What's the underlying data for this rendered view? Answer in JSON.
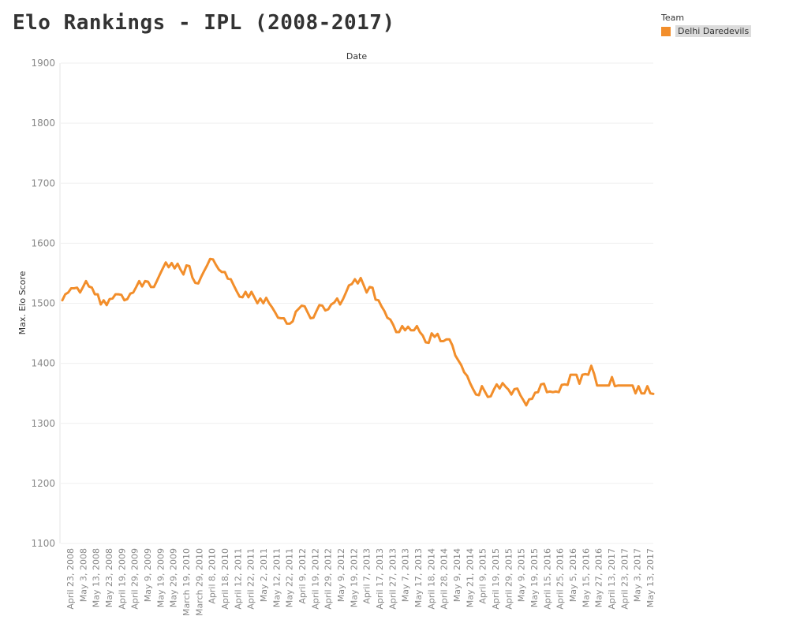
{
  "title": "Elo Rankings - IPL (2008-2017)",
  "legend": {
    "title": "Team",
    "items": [
      {
        "label": "Delhi Daredevils",
        "color": "#f28e2b"
      }
    ]
  },
  "chart_data": {
    "type": "line",
    "title": "Elo Rankings - IPL (2008-2017)",
    "xlabel": "Date",
    "ylabel": "Max. Elo Score",
    "ylim": [
      1100,
      1900
    ],
    "yticks": [
      1100,
      1200,
      1300,
      1400,
      1500,
      1600,
      1700,
      1800,
      1900
    ],
    "grid": true,
    "legend_position": "top-right",
    "x_tick_labels": [
      "April 23, 2008",
      "May 3, 2008",
      "May 13, 2008",
      "May 23, 2008",
      "April 19, 2009",
      "April 29, 2009",
      "May 9, 2009",
      "May 19, 2009",
      "May 29, 2009",
      "March 19, 2010",
      "March 29, 2010",
      "April 8, 2010",
      "April 18, 2010",
      "April 12, 2011",
      "April 22, 2011",
      "May 2, 2011",
      "May 12, 2011",
      "May 22, 2011",
      "April 9, 2012",
      "April 19, 2012",
      "April 29, 2012",
      "May 9, 2012",
      "May 19, 2012",
      "April 7, 2013",
      "April 17, 2013",
      "April 27, 2013",
      "May 7, 2013",
      "May 17, 2013",
      "April 18, 2014",
      "April 28, 2014",
      "May 9, 2014",
      "May 21, 2014",
      "April 9, 2015",
      "April 19, 2015",
      "April 29, 2015",
      "May 9, 2015",
      "May 19, 2015",
      "April 15, 2016",
      "April 25, 2016",
      "May 5, 2016",
      "May 15, 2016",
      "May 27, 2016",
      "April 13, 2017",
      "April 23, 2017",
      "May 3, 2017",
      "May 13, 2017"
    ],
    "series": [
      {
        "name": "Delhi Daredevils",
        "color": "#f28e2b",
        "values": [
          1505,
          1515,
          1518,
          1525,
          1525,
          1526,
          1518,
          1527,
          1537,
          1528,
          1526,
          1515,
          1515,
          1498,
          1505,
          1497,
          1507,
          1508,
          1515,
          1515,
          1514,
          1505,
          1507,
          1516,
          1518,
          1527,
          1537,
          1528,
          1537,
          1536,
          1527,
          1527,
          1537,
          1548,
          1558,
          1568,
          1560,
          1567,
          1558,
          1566,
          1556,
          1548,
          1563,
          1562,
          1543,
          1534,
          1533,
          1544,
          1554,
          1563,
          1574,
          1573,
          1564,
          1556,
          1552,
          1552,
          1541,
          1540,
          1530,
          1520,
          1511,
          1510,
          1519,
          1510,
          1519,
          1510,
          1500,
          1508,
          1500,
          1509,
          1500,
          1493,
          1485,
          1476,
          1475,
          1475,
          1466,
          1466,
          1470,
          1486,
          1491,
          1496,
          1495,
          1485,
          1475,
          1476,
          1487,
          1497,
          1496,
          1488,
          1490,
          1498,
          1501,
          1508,
          1498,
          1507,
          1518,
          1530,
          1532,
          1540,
          1533,
          1542,
          1530,
          1518,
          1527,
          1526,
          1506,
          1505,
          1495,
          1487,
          1476,
          1473,
          1464,
          1452,
          1452,
          1462,
          1455,
          1461,
          1455,
          1455,
          1462,
          1452,
          1446,
          1435,
          1434,
          1450,
          1444,
          1449,
          1437,
          1437,
          1440,
          1440,
          1430,
          1413,
          1405,
          1397,
          1385,
          1379,
          1367,
          1357,
          1348,
          1347,
          1362,
          1353,
          1344,
          1345,
          1356,
          1365,
          1358,
          1367,
          1361,
          1356,
          1348,
          1357,
          1358,
          1347,
          1339,
          1330,
          1340,
          1341,
          1351,
          1352,
          1365,
          1366,
          1352,
          1353,
          1352,
          1353,
          1352,
          1364,
          1365,
          1364,
          1381,
          1381,
          1381,
          1366,
          1381,
          1382,
          1381,
          1396,
          1382,
          1363,
          1363,
          1363,
          1363,
          1363,
          1377,
          1362,
          1363,
          1363,
          1363,
          1363,
          1363,
          1363,
          1350,
          1362,
          1350,
          1350,
          1362,
          1350,
          1349
        ]
      }
    ]
  }
}
